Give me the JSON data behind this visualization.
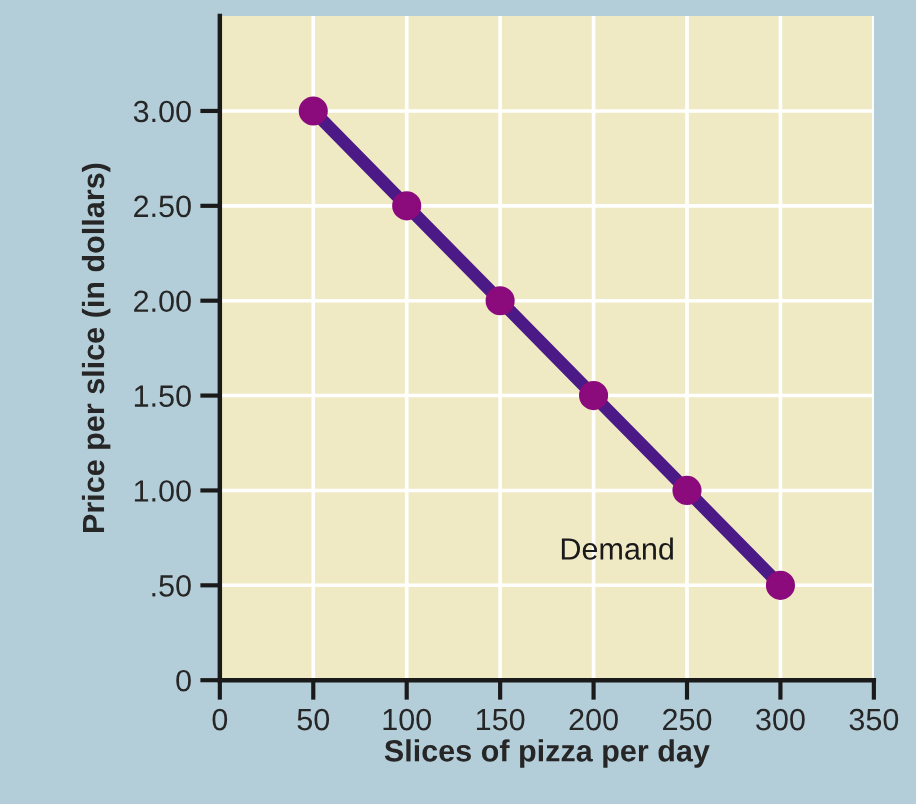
{
  "chart_data": {
    "type": "line",
    "xlabel": "Slices of pizza per day",
    "ylabel": "Price per slice (in dollars)",
    "x": [
      50,
      100,
      150,
      200,
      250,
      300
    ],
    "series": [
      {
        "name": "Demand",
        "color": "#4b1a87",
        "values": [
          3.0,
          2.5,
          2.0,
          1.5,
          1.0,
          0.5
        ]
      }
    ],
    "xlim": [
      0,
      350
    ],
    "xticks": [
      0,
      50,
      100,
      150,
      200,
      250,
      300,
      350
    ],
    "ylim": [
      0,
      3.5
    ],
    "yticks": [
      0,
      {
        "value": 0.5,
        "label": ".50"
      },
      {
        "value": 1,
        "label": "1.00"
      },
      {
        "value": 1.5,
        "label": "1.50"
      },
      {
        "value": 2,
        "label": "2.00"
      },
      {
        "value": 2.5,
        "label": "2.50"
      },
      {
        "value": 3,
        "label": "3.00"
      }
    ],
    "grid": true,
    "marker": "circle",
    "line_style": "solid",
    "legend": false
  }
}
